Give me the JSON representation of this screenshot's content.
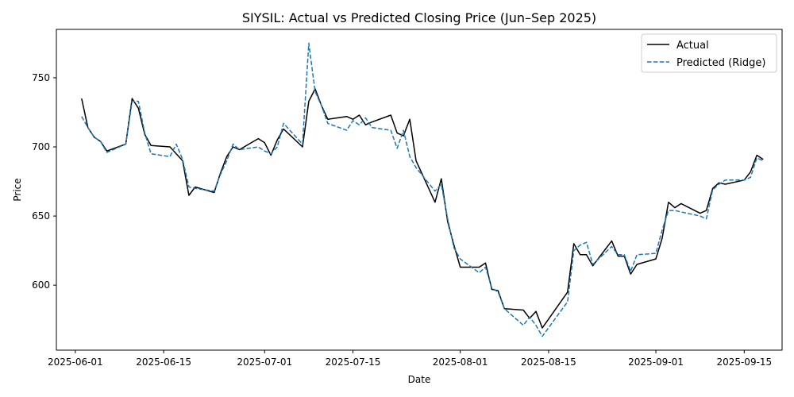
{
  "chart_data": {
    "type": "line",
    "title": "SIYSIL: Actual vs Predicted Closing Price (Jun–Sep 2025)",
    "xlabel": "Date",
    "ylabel": "Price",
    "xlim": [
      "2025-05-29",
      "2025-09-21"
    ],
    "ylim": [
      553,
      785
    ],
    "x_ticks": [
      "2025-06-01",
      "2025-06-15",
      "2025-07-01",
      "2025-07-15",
      "2025-08-01",
      "2025-08-15",
      "2025-09-01",
      "2025-09-15"
    ],
    "y_ticks": [
      600,
      650,
      700,
      750
    ],
    "grid": false,
    "legend_position": "top-right",
    "colors": {
      "actual": "#000000",
      "predicted": "#1f77b4"
    },
    "series": [
      {
        "name": "Actual",
        "style": "solid",
        "x": [
          "2025-06-02",
          "2025-06-03",
          "2025-06-04",
          "2025-06-05",
          "2025-06-06",
          "2025-06-09",
          "2025-06-10",
          "2025-06-11",
          "2025-06-12",
          "2025-06-13",
          "2025-06-16",
          "2025-06-17",
          "2025-06-18",
          "2025-06-19",
          "2025-06-20",
          "2025-06-23",
          "2025-06-24",
          "2025-06-25",
          "2025-06-26",
          "2025-06-27",
          "2025-06-30",
          "2025-07-01",
          "2025-07-02",
          "2025-07-03",
          "2025-07-04",
          "2025-07-07",
          "2025-07-08",
          "2025-07-09",
          "2025-07-10",
          "2025-07-11",
          "2025-07-14",
          "2025-07-15",
          "2025-07-16",
          "2025-07-17",
          "2025-07-18",
          "2025-07-21",
          "2025-07-22",
          "2025-07-23",
          "2025-07-24",
          "2025-07-25",
          "2025-07-28",
          "2025-07-29",
          "2025-07-30",
          "2025-07-31",
          "2025-08-01",
          "2025-08-04",
          "2025-08-05",
          "2025-08-06",
          "2025-08-07",
          "2025-08-08",
          "2025-08-11",
          "2025-08-12",
          "2025-08-13",
          "2025-08-14",
          "2025-08-18",
          "2025-08-19",
          "2025-08-20",
          "2025-08-21",
          "2025-08-22",
          "2025-08-25",
          "2025-08-26",
          "2025-08-27",
          "2025-08-28",
          "2025-08-29",
          "2025-09-01",
          "2025-09-02",
          "2025-09-03",
          "2025-09-04",
          "2025-09-05",
          "2025-09-08",
          "2025-09-09",
          "2025-09-10",
          "2025-09-11",
          "2025-09-12",
          "2025-09-15",
          "2025-09-16",
          "2025-09-17",
          "2025-09-18"
        ],
        "y": [
          735,
          714,
          707,
          704,
          697,
          702,
          735,
          728,
          709,
          701,
          700,
          695,
          690,
          665,
          671,
          667,
          681,
          693,
          700,
          698,
          706,
          703,
          694,
          705,
          713,
          700,
          733,
          742,
          730,
          720,
          722,
          720,
          723,
          716,
          718,
          723,
          710,
          708,
          720,
          690,
          660,
          677,
          646,
          629,
          613,
          613,
          616,
          597,
          596,
          583,
          582,
          576,
          581,
          569,
          595,
          630,
          622,
          622,
          614,
          632,
          621,
          621,
          608,
          615,
          619,
          634,
          660,
          656,
          659,
          652,
          654,
          670,
          674,
          673,
          676,
          682,
          694,
          691
        ]
      },
      {
        "name": "Predicted (Ridge)",
        "style": "dashed",
        "x": [
          "2025-06-02",
          "2025-06-03",
          "2025-06-04",
          "2025-06-05",
          "2025-06-06",
          "2025-06-09",
          "2025-06-10",
          "2025-06-11",
          "2025-06-12",
          "2025-06-13",
          "2025-06-16",
          "2025-06-17",
          "2025-06-18",
          "2025-06-19",
          "2025-06-20",
          "2025-06-23",
          "2025-06-24",
          "2025-06-25",
          "2025-06-26",
          "2025-06-27",
          "2025-06-30",
          "2025-07-01",
          "2025-07-02",
          "2025-07-03",
          "2025-07-04",
          "2025-07-07",
          "2025-07-08",
          "2025-07-09",
          "2025-07-10",
          "2025-07-11",
          "2025-07-14",
          "2025-07-15",
          "2025-07-16",
          "2025-07-17",
          "2025-07-18",
          "2025-07-21",
          "2025-07-22",
          "2025-07-23",
          "2025-07-24",
          "2025-07-25",
          "2025-07-28",
          "2025-07-29",
          "2025-07-30",
          "2025-07-31",
          "2025-08-01",
          "2025-08-04",
          "2025-08-05",
          "2025-08-06",
          "2025-08-07",
          "2025-08-08",
          "2025-08-11",
          "2025-08-12",
          "2025-08-13",
          "2025-08-14",
          "2025-08-18",
          "2025-08-19",
          "2025-08-20",
          "2025-08-21",
          "2025-08-22",
          "2025-08-25",
          "2025-08-26",
          "2025-08-27",
          "2025-08-28",
          "2025-08-29",
          "2025-09-01",
          "2025-09-02",
          "2025-09-03",
          "2025-09-04",
          "2025-09-05",
          "2025-09-08",
          "2025-09-09",
          "2025-09-10",
          "2025-09-11",
          "2025-09-12",
          "2025-09-15",
          "2025-09-16",
          "2025-09-17",
          "2025-09-18"
        ],
        "y": [
          722,
          714,
          707,
          704,
          696,
          702,
          733,
          733,
          710,
          695,
          693,
          702,
          691,
          671,
          670,
          668,
          680,
          690,
          702,
          698,
          700,
          697,
          695,
          700,
          717,
          702,
          775,
          740,
          730,
          717,
          712,
          719,
          716,
          721,
          714,
          712,
          699,
          712,
          693,
          685,
          668,
          673,
          648,
          627,
          619,
          609,
          613,
          598,
          595,
          583,
          571,
          577,
          571,
          563,
          588,
          625,
          629,
          631,
          615,
          628,
          622,
          622,
          610,
          622,
          623,
          640,
          654,
          654,
          653,
          650,
          648,
          669,
          673,
          676,
          676,
          678,
          692,
          690
        ]
      }
    ]
  }
}
